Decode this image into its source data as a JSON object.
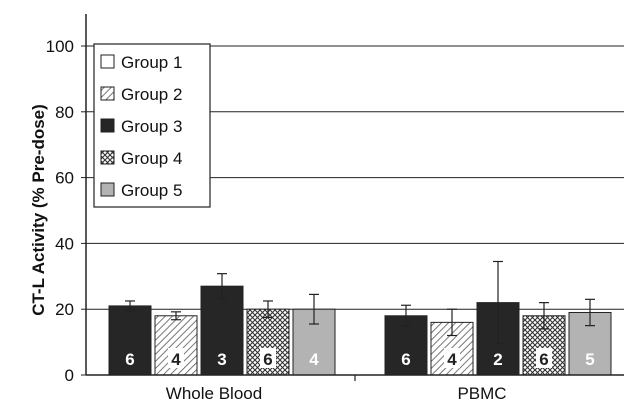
{
  "chart_data": {
    "type": "bar",
    "title": "",
    "xlabel": "",
    "ylabel": "CT-L Activity (% Pre-dose)",
    "ylim": [
      0,
      100
    ],
    "yticks": [
      0,
      20,
      40,
      60,
      80,
      100
    ],
    "grid": true,
    "legend_position": "top-left",
    "categories": [
      "Whole Blood",
      "PBMC"
    ],
    "series": [
      {
        "name": "Group 1",
        "pattern": "white",
        "color": "#ffffff",
        "values": [
          null,
          null
        ],
        "errors": [
          null,
          null
        ],
        "n": [
          null,
          null
        ]
      },
      {
        "name": "Group 2",
        "pattern": "diagonal-hatch",
        "color": "#d9d9d9",
        "values": [
          18,
          16
        ],
        "errors": [
          1.2,
          4
        ],
        "n": [
          "4",
          "4"
        ]
      },
      {
        "name": "Group 3",
        "pattern": "solid-dark",
        "color": "#262626",
        "values": [
          27,
          22
        ],
        "errors": [
          3.8,
          12.5
        ],
        "n": [
          "3",
          "2"
        ]
      },
      {
        "name": "Group 4",
        "pattern": "crosshatch",
        "color": "#bfbfbf",
        "values": [
          20,
          18
        ],
        "errors": [
          2.5,
          4
        ],
        "n": [
          "6",
          "6"
        ]
      },
      {
        "name": "Group 5",
        "pattern": "solid-gray",
        "color": "#b3b3b3",
        "values": [
          20,
          19
        ],
        "errors": [
          4.5,
          4
        ],
        "n": [
          "4",
          "5"
        ]
      }
    ],
    "extra_leading_bars": [
      {
        "category": "Whole Blood",
        "value": 21,
        "error": 1.5,
        "n": "6",
        "pattern": "solid-dark",
        "color": "#262626"
      },
      {
        "category": "PBMC",
        "value": 18,
        "error": 3.2,
        "n": "6",
        "pattern": "solid-dark",
        "color": "#262626"
      }
    ]
  }
}
